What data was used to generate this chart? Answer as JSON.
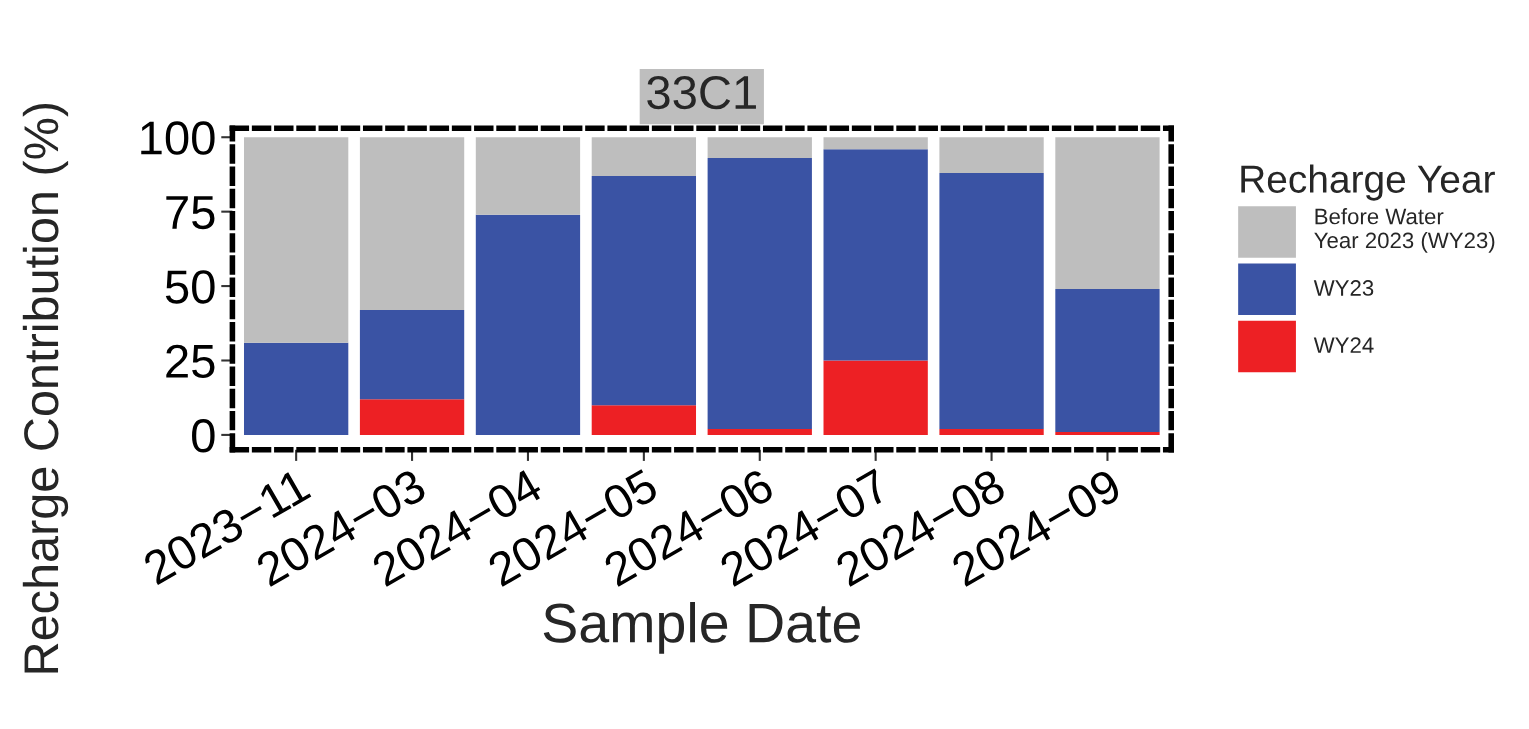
{
  "chart_data": {
    "type": "bar",
    "title": "33C1",
    "xlabel": "Sample Date",
    "ylabel": "Recharge Contribution (%)",
    "legend_title": "Recharge Year",
    "stacked": true,
    "legend": "right",
    "categories": [
      "2023−11",
      "2024−03",
      "2024−04",
      "2024−05",
      "2024−06",
      "2024−07",
      "2024−08",
      "2024−09"
    ],
    "series": [
      {
        "name": "WY24",
        "color": "#ed2024",
        "values": [
          0,
          12,
          0,
          10,
          2,
          25,
          2,
          1
        ]
      },
      {
        "name": "WY23",
        "color": "#3a53a4",
        "values": [
          31,
          30,
          74,
          77,
          91,
          71,
          86,
          48
        ]
      },
      {
        "name": "Before Water\nYear 2023 (WY23)",
        "color": "#bebebe",
        "values": [
          69,
          58,
          26,
          13,
          7,
          4,
          12,
          51
        ]
      }
    ],
    "ylim": [
      -5,
      103
    ],
    "yticks": [
      0,
      25,
      50,
      75,
      100
    ],
    "grid": false
  }
}
